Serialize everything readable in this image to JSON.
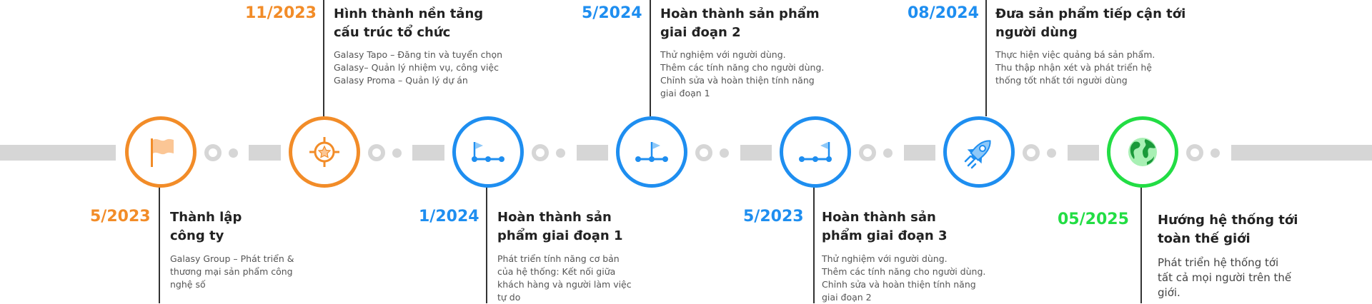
{
  "colors": {
    "orange": "#f28c28",
    "blue": "#1e8ef0",
    "green": "#22dd44",
    "track": "#d6d6d6"
  },
  "milestones": [
    {
      "date": "5/2023",
      "title": [
        "Thành lập",
        "công ty"
      ],
      "desc": [
        "Galasy Group – Phát triển &",
        "thương mại sản phẩm công",
        "nghệ số"
      ],
      "icon": "flag-icon"
    },
    {
      "date": "11/2023",
      "title": [
        "Hình thành nền tảng",
        "cấu trúc tổ chức"
      ],
      "desc": [
        "Galasy Tapo – Đăng tin và tuyển chọn",
        "Galasy– Quản lý nhiệm vụ, công việc",
        "Galasy Proma – Quản lý dự án"
      ],
      "icon": "target-icon"
    },
    {
      "date": "1/2024",
      "title": [
        "Hoàn thành sản",
        "phẩm giai đoạn 1"
      ],
      "desc": [
        "Phát triển tính năng cơ bản",
        "của hệ thống: Kết nối giữa",
        "khách hàng và người làm việc",
        "tự do"
      ],
      "icon": "progress-start-icon"
    },
    {
      "date": "5/2024",
      "title": [
        "Hoàn thành sản phẩm",
        "giai đoạn 2"
      ],
      "desc": [
        "Thử nghiệm với người dùng.",
        "Thêm các tính năng cho người dùng.",
        "Chỉnh sửa và hoàn thiện tính năng",
        "giai đoạn 1"
      ],
      "icon": "progress-middle-icon"
    },
    {
      "date": "5/2023",
      "title": [
        "Hoàn thành sản",
        "phẩm giai đoạn 3"
      ],
      "desc": [
        "Thử nghiệm với người dùng.",
        "Thêm các tính năng cho người dùng.",
        "Chỉnh sửa và hoàn thiện tính năng",
        "giai đoạn 2"
      ],
      "icon": "progress-end-icon"
    },
    {
      "date": "08/2024",
      "title": [
        "Đưa sản phẩm tiếp cận tới",
        "người dùng"
      ],
      "desc": [
        "Thực hiện việc quảng bá sản phẩm.",
        "Thu thập nhận xét và phát triển hệ",
        "thống tốt nhất tới người dùng"
      ],
      "icon": "rocket-icon"
    },
    {
      "date": "05/2025",
      "title": [
        "Hướng hệ thống tới",
        "toàn thế giới"
      ],
      "desc": [
        "Phát triển hệ thống tới",
        "tất cả mọi người trên thế",
        "giới."
      ],
      "icon": "globe-icon"
    }
  ]
}
